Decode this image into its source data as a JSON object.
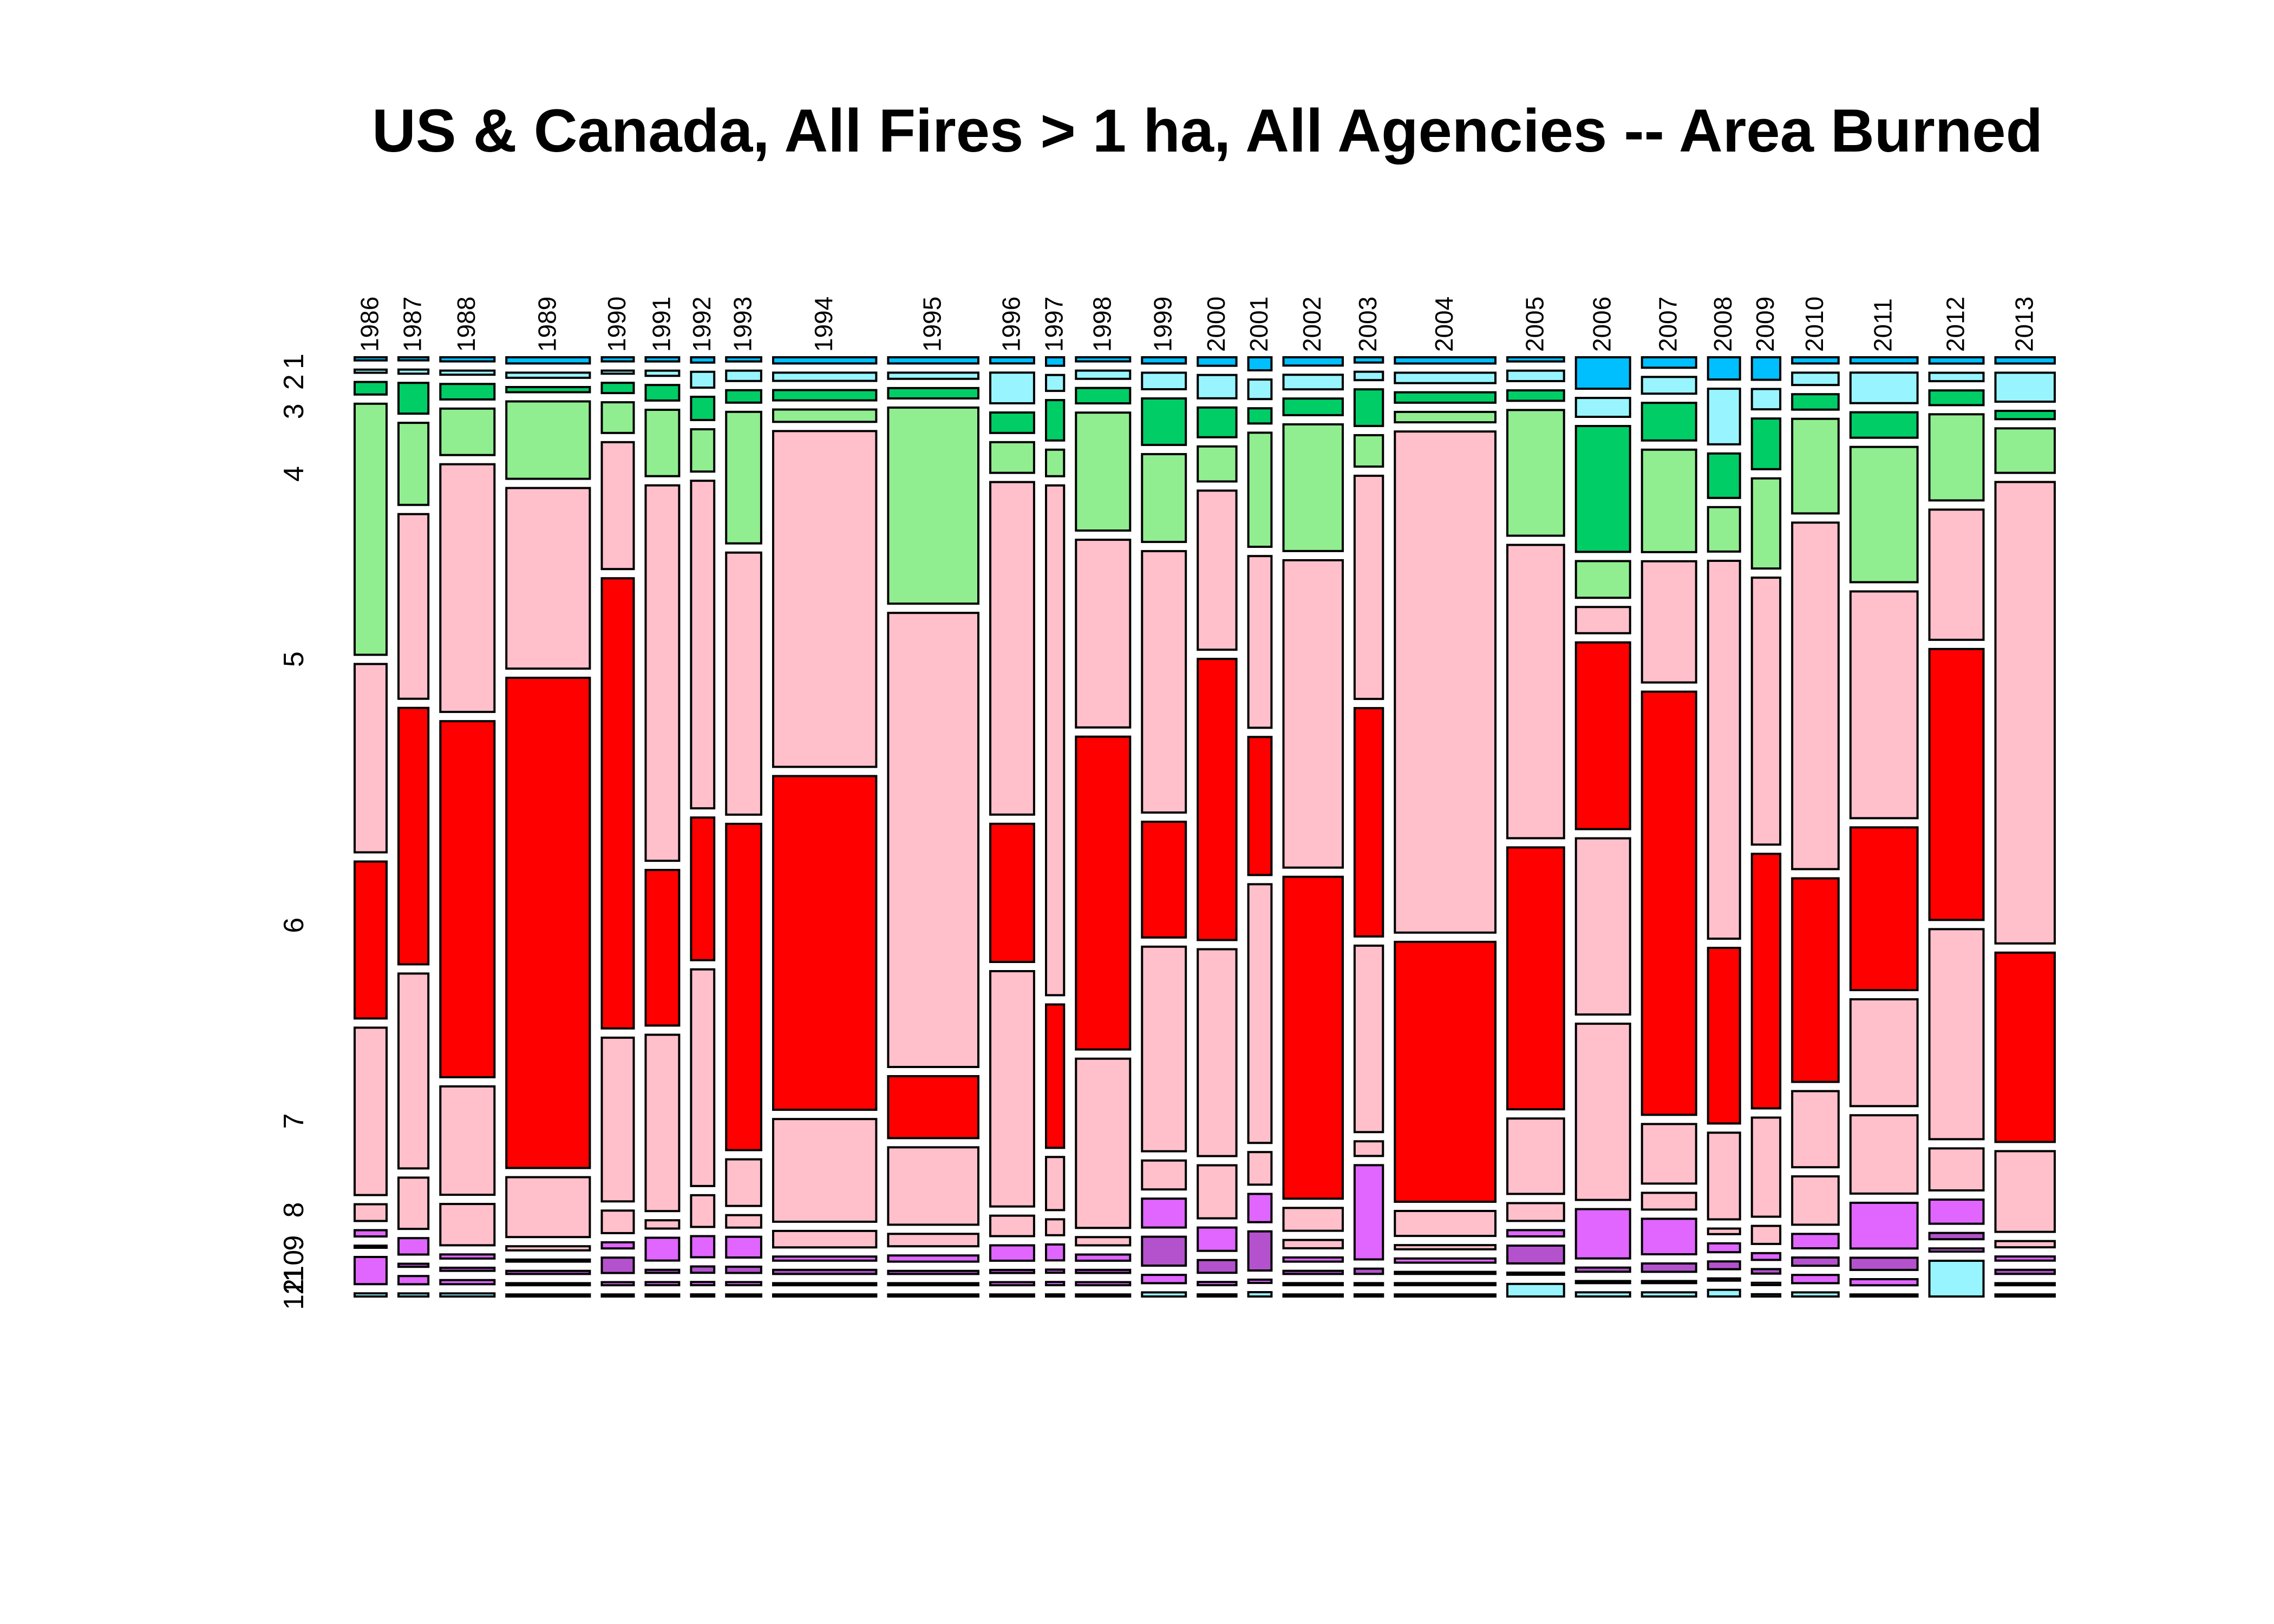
{
  "chart_data": {
    "type": "mosaic",
    "title": "US & Canada, All Fires > 1 ha, All Agencies -- Area Burned",
    "x_dimension": "year",
    "y_dimension": "month",
    "month_labels": [
      "1",
      "2",
      "3",
      "4",
      "5",
      "6",
      "7",
      "8",
      "9",
      "10",
      "11",
      "12"
    ],
    "month_colors": {
      "1": "#00BFFF",
      "2": "#98F5FF",
      "3": "#00CD66",
      "4": "#90EE90",
      "5": "#FFC0CB",
      "6": "#FF0000",
      "7": "#FFC0CB",
      "8": "#FFC0CB",
      "9": "#E066FF",
      "10": "#B452CD",
      "11": "#E066FF",
      "12": "#98F5FF"
    },
    "note": "Column width = relative share of total area burned per year; segment heights = share of that year's area burned in each month (1-12, top to bottom).",
    "years": [
      {
        "year": "1986",
        "total": 0.62,
        "months": [
          0.003,
          0.003,
          0.012,
          0.24,
          0.18,
          0.15,
          0.16,
          0.016,
          0.006,
          0.002,
          0.026,
          0.003
        ]
      },
      {
        "year": "1987",
        "total": 0.58,
        "months": [
          0.003,
          0.004,
          0.03,
          0.08,
          0.18,
          0.25,
          0.19,
          0.05,
          0.016,
          0.003,
          0.008,
          0.003
        ]
      },
      {
        "year": "1988",
        "total": 1.05,
        "months": [
          0.004,
          0.004,
          0.015,
          0.045,
          0.24,
          0.345,
          0.105,
          0.04,
          0.004,
          0.003,
          0.004,
          0.003
        ]
      },
      {
        "year": "1989",
        "total": 1.62,
        "months": [
          0.006,
          0.005,
          0.005,
          0.075,
          0.175,
          0.475,
          0.058,
          0.004,
          0.002,
          0.003,
          0.002,
          0.002
        ]
      },
      {
        "year": "1990",
        "total": 0.62,
        "months": [
          0.004,
          0.003,
          0.01,
          0.03,
          0.124,
          0.44,
          0.16,
          0.022,
          0.006,
          0.015,
          0.003,
          0.002
        ]
      },
      {
        "year": "1991",
        "total": 0.65,
        "months": [
          0.004,
          0.005,
          0.015,
          0.064,
          0.362,
          0.15,
          0.17,
          0.008,
          0.022,
          0.003,
          0.003,
          0.002
        ]
      },
      {
        "year": "1992",
        "total": 0.45,
        "months": [
          0.005,
          0.015,
          0.022,
          0.04,
          0.31,
          0.135,
          0.205,
          0.03,
          0.02,
          0.006,
          0.003,
          0.002
        ]
      },
      {
        "year": "1993",
        "total": 0.68,
        "months": [
          0.004,
          0.01,
          0.012,
          0.127,
          0.253,
          0.315,
          0.045,
          0.012,
          0.02,
          0.006,
          0.003,
          0.002
        ]
      },
      {
        "year": "1994",
        "total": 2.0,
        "months": [
          0.006,
          0.008,
          0.01,
          0.012,
          0.327,
          0.325,
          0.1,
          0.016,
          0.004,
          0.004,
          0.002,
          0.002
        ]
      },
      {
        "year": "1995",
        "total": 1.75,
        "months": [
          0.006,
          0.006,
          0.01,
          0.19,
          0.44,
          0.06,
          0.075,
          0.012,
          0.006,
          0.003,
          0.002,
          0.002
        ]
      },
      {
        "year": "1996",
        "total": 0.85,
        "months": [
          0.006,
          0.03,
          0.02,
          0.03,
          0.325,
          0.135,
          0.23,
          0.02,
          0.015,
          0.003,
          0.003,
          0.002
        ]
      },
      {
        "year": "1997",
        "total": 0.35,
        "months": [
          0.008,
          0.015,
          0.038,
          0.025,
          0.48,
          0.135,
          0.05,
          0.015,
          0.015,
          0.003,
          0.003,
          0.002
        ]
      },
      {
        "year": "1998",
        "total": 1.05,
        "months": [
          0.004,
          0.008,
          0.015,
          0.115,
          0.183,
          0.305,
          0.165,
          0.008,
          0.006,
          0.003,
          0.003,
          0.002
        ]
      },
      {
        "year": "1999",
        "total": 0.85,
        "months": [
          0.006,
          0.016,
          0.045,
          0.085,
          0.253,
          0.112,
          0.198,
          0.028,
          0.028,
          0.028,
          0.008,
          0.004
        ]
      },
      {
        "year": "2000",
        "total": 0.75,
        "months": [
          0.008,
          0.022,
          0.028,
          0.033,
          0.15,
          0.265,
          0.195,
          0.05,
          0.022,
          0.012,
          0.003,
          0.002
        ]
      },
      {
        "year": "2001",
        "total": 0.45,
        "months": [
          0.012,
          0.018,
          0.014,
          0.105,
          0.158,
          0.127,
          0.238,
          0.03,
          0.026,
          0.036,
          0.003,
          0.004
        ]
      },
      {
        "year": "2002",
        "total": 1.15,
        "months": [
          0.008,
          0.014,
          0.016,
          0.122,
          0.296,
          0.31,
          0.022,
          0.008,
          0.004,
          0.003,
          0.002,
          0.002
        ]
      },
      {
        "year": "2003",
        "total": 0.55,
        "months": [
          0.005,
          0.008,
          0.035,
          0.03,
          0.213,
          0.218,
          0.178,
          0.014,
          0.09,
          0.005,
          0.002,
          0.002
        ]
      },
      {
        "year": "2004",
        "total": 1.95,
        "months": [
          0.006,
          0.01,
          0.01,
          0.01,
          0.482,
          0.25,
          0.024,
          0.004,
          0.004,
          0.002,
          0.002,
          0.002
        ]
      },
      {
        "year": "2005",
        "total": 1.1,
        "months": [
          0.004,
          0.01,
          0.01,
          0.12,
          0.28,
          0.25,
          0.072,
          0.017,
          0.006,
          0.017,
          0.002,
          0.012
        ]
      },
      {
        "year": "2006",
        "total": 1.05,
        "months": [
          0.03,
          0.018,
          0.12,
          0.035,
          0.025,
          0.178,
          0.168,
          0.168,
          0.047,
          0.004,
          0.002,
          0.004
        ]
      },
      {
        "year": "2007",
        "total": 1.05,
        "months": [
          0.01,
          0.016,
          0.036,
          0.098,
          0.116,
          0.405,
          0.057,
          0.016,
          0.034,
          0.008,
          0.002,
          0.004
        ]
      },
      {
        "year": "2008",
        "total": 0.62,
        "months": [
          0.02,
          0.05,
          0.04,
          0.04,
          0.34,
          0.158,
          0.078,
          0.005,
          0.008,
          0.007,
          0.002,
          0.006
        ]
      },
      {
        "year": "2009",
        "total": 0.55,
        "months": [
          0.02,
          0.018,
          0.045,
          0.08,
          0.237,
          0.226,
          0.088,
          0.016,
          0.006,
          0.004,
          0.002,
          0.002
        ]
      },
      {
        "year": "2010",
        "total": 0.9,
        "months": [
          0.006,
          0.012,
          0.015,
          0.092,
          0.337,
          0.198,
          0.074,
          0.047,
          0.014,
          0.008,
          0.008,
          0.004
        ]
      },
      {
        "year": "2011",
        "total": 1.3,
        "months": [
          0.006,
          0.03,
          0.025,
          0.133,
          0.223,
          0.16,
          0.105,
          0.077,
          0.045,
          0.012,
          0.006,
          0.002
        ]
      },
      {
        "year": "2012",
        "total": 1.05,
        "months": [
          0.006,
          0.008,
          0.014,
          0.082,
          0.124,
          0.258,
          0.2,
          0.04,
          0.023,
          0.006,
          0.003,
          0.034
        ]
      },
      {
        "year": "2013",
        "total": 1.15,
        "months": [
          0.006,
          0.028,
          0.008,
          0.043,
          0.446,
          0.183,
          0.078,
          0.006,
          0.004,
          0.004,
          0.002,
          0.002
        ]
      }
    ]
  }
}
